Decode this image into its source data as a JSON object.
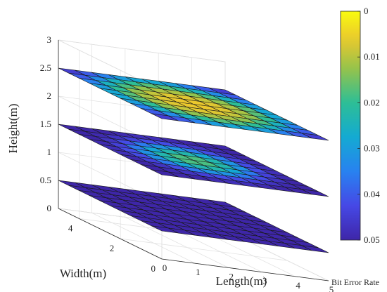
{
  "chart_data": {
    "type": "heatmap",
    "title": "",
    "xlabel": "Length(m)",
    "ylabel": "Width(m)",
    "zlabel": "Height(m)",
    "xlim": [
      0,
      5
    ],
    "ylim": [
      0,
      5
    ],
    "zlim": [
      0,
      3
    ],
    "x_ticks": [
      "0",
      "1",
      "2",
      "3",
      "4",
      "5"
    ],
    "y_ticks": [
      "0",
      "2",
      "4"
    ],
    "z_ticks": [
      "0",
      "0.5",
      "1",
      "1.5",
      "2",
      "2.5",
      "3"
    ],
    "grid": true,
    "grid_cells": 10,
    "colorbar": {
      "label": "Bit Error Rate",
      "range": [
        0,
        0.05
      ],
      "ticks": [
        "0",
        "0.01",
        "0.02",
        "0.03",
        "0.04",
        "0.05"
      ],
      "reversed": true,
      "colormap": "parula"
    },
    "slices": [
      {
        "height": 2.5,
        "values": [
          [
            0.045,
            0.04,
            0.035,
            0.03,
            0.028,
            0.028,
            0.03,
            0.035,
            0.04,
            0.045
          ],
          [
            0.04,
            0.033,
            0.025,
            0.02,
            0.017,
            0.017,
            0.02,
            0.025,
            0.033,
            0.04
          ],
          [
            0.035,
            0.025,
            0.018,
            0.013,
            0.011,
            0.011,
            0.013,
            0.018,
            0.025,
            0.035
          ],
          [
            0.03,
            0.02,
            0.013,
            0.009,
            0.007,
            0.007,
            0.009,
            0.013,
            0.02,
            0.03
          ],
          [
            0.028,
            0.017,
            0.011,
            0.007,
            0.006,
            0.006,
            0.007,
            0.011,
            0.017,
            0.028
          ],
          [
            0.028,
            0.017,
            0.011,
            0.007,
            0.006,
            0.006,
            0.007,
            0.011,
            0.017,
            0.028
          ],
          [
            0.03,
            0.02,
            0.013,
            0.009,
            0.007,
            0.007,
            0.009,
            0.013,
            0.02,
            0.03
          ],
          [
            0.035,
            0.025,
            0.018,
            0.013,
            0.011,
            0.011,
            0.013,
            0.018,
            0.025,
            0.035
          ],
          [
            0.04,
            0.033,
            0.025,
            0.02,
            0.017,
            0.017,
            0.02,
            0.025,
            0.033,
            0.04
          ],
          [
            0.045,
            0.04,
            0.035,
            0.03,
            0.028,
            0.028,
            0.03,
            0.035,
            0.04,
            0.045
          ]
        ]
      },
      {
        "height": 1.5,
        "values": [
          [
            0.05,
            0.05,
            0.05,
            0.049,
            0.048,
            0.048,
            0.049,
            0.05,
            0.05,
            0.05
          ],
          [
            0.05,
            0.049,
            0.047,
            0.044,
            0.042,
            0.042,
            0.044,
            0.047,
            0.049,
            0.05
          ],
          [
            0.05,
            0.047,
            0.042,
            0.036,
            0.032,
            0.032,
            0.036,
            0.042,
            0.047,
            0.05
          ],
          [
            0.049,
            0.044,
            0.036,
            0.028,
            0.023,
            0.023,
            0.028,
            0.036,
            0.044,
            0.049
          ],
          [
            0.048,
            0.042,
            0.032,
            0.023,
            0.018,
            0.018,
            0.023,
            0.032,
            0.042,
            0.048
          ],
          [
            0.048,
            0.042,
            0.032,
            0.023,
            0.018,
            0.018,
            0.023,
            0.032,
            0.042,
            0.048
          ],
          [
            0.049,
            0.044,
            0.036,
            0.028,
            0.023,
            0.023,
            0.028,
            0.036,
            0.044,
            0.049
          ],
          [
            0.05,
            0.047,
            0.042,
            0.036,
            0.032,
            0.032,
            0.036,
            0.042,
            0.047,
            0.05
          ],
          [
            0.05,
            0.049,
            0.047,
            0.044,
            0.042,
            0.042,
            0.044,
            0.047,
            0.049,
            0.05
          ],
          [
            0.05,
            0.05,
            0.05,
            0.049,
            0.048,
            0.048,
            0.049,
            0.05,
            0.05,
            0.05
          ]
        ]
      },
      {
        "height": 0.5,
        "values": [
          [
            0.05,
            0.05,
            0.05,
            0.05,
            0.05,
            0.05,
            0.05,
            0.05,
            0.05,
            0.05
          ],
          [
            0.05,
            0.05,
            0.05,
            0.05,
            0.05,
            0.05,
            0.05,
            0.05,
            0.05,
            0.05
          ],
          [
            0.05,
            0.05,
            0.05,
            0.05,
            0.05,
            0.05,
            0.05,
            0.05,
            0.05,
            0.05
          ],
          [
            0.05,
            0.05,
            0.05,
            0.05,
            0.05,
            0.05,
            0.05,
            0.05,
            0.05,
            0.05
          ],
          [
            0.05,
            0.05,
            0.05,
            0.05,
            0.05,
            0.05,
            0.05,
            0.05,
            0.05,
            0.05
          ],
          [
            0.05,
            0.05,
            0.05,
            0.05,
            0.05,
            0.05,
            0.05,
            0.05,
            0.05,
            0.05
          ],
          [
            0.05,
            0.05,
            0.05,
            0.05,
            0.05,
            0.05,
            0.05,
            0.05,
            0.05,
            0.05
          ],
          [
            0.05,
            0.05,
            0.05,
            0.05,
            0.05,
            0.05,
            0.05,
            0.05,
            0.05,
            0.05
          ],
          [
            0.05,
            0.05,
            0.05,
            0.05,
            0.05,
            0.05,
            0.05,
            0.05,
            0.05,
            0.05
          ],
          [
            0.05,
            0.05,
            0.05,
            0.05,
            0.05,
            0.05,
            0.05,
            0.05,
            0.05,
            0.05
          ]
        ]
      }
    ]
  }
}
